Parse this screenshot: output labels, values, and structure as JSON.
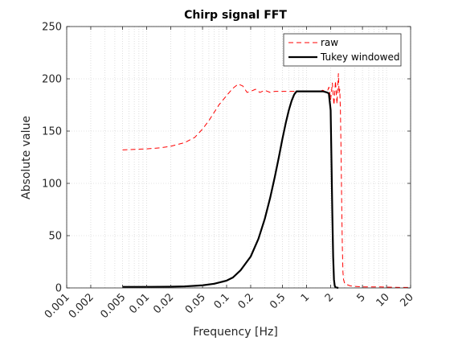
{
  "chart_data": {
    "type": "line",
    "title": "Chirp signal FFT",
    "xlabel": "Frequency [Hz]",
    "ylabel": "Absolute value",
    "xscale": "log",
    "xlim": [
      0.001,
      20
    ],
    "ylim": [
      0,
      250
    ],
    "xticks": [
      {
        "value": 0.001,
        "label": "0.001"
      },
      {
        "value": 0.002,
        "label": "0.002"
      },
      {
        "value": 0.005,
        "label": "0.005"
      },
      {
        "value": 0.01,
        "label": "0.01"
      },
      {
        "value": 0.02,
        "label": "0.02"
      },
      {
        "value": 0.05,
        "label": "0.05"
      },
      {
        "value": 0.1,
        "label": "0.1"
      },
      {
        "value": 0.2,
        "label": "0.2"
      },
      {
        "value": 0.5,
        "label": "0.5"
      },
      {
        "value": 1,
        "label": "1"
      },
      {
        "value": 2,
        "label": "2"
      },
      {
        "value": 5,
        "label": "5"
      },
      {
        "value": 10,
        "label": "10"
      },
      {
        "value": 20,
        "label": "20"
      }
    ],
    "yticks": [
      {
        "value": 0,
        "label": "0"
      },
      {
        "value": 50,
        "label": "50"
      },
      {
        "value": 100,
        "label": "100"
      },
      {
        "value": 150,
        "label": "150"
      },
      {
        "value": 200,
        "label": "200"
      },
      {
        "value": 250,
        "label": "250"
      }
    ],
    "grid": true,
    "legend_position": "top-right",
    "series": [
      {
        "name": "raw",
        "color": "#ff0000",
        "style": "dashed",
        "points": [
          [
            0.005,
            132
          ],
          [
            0.007,
            132.5
          ],
          [
            0.01,
            133
          ],
          [
            0.015,
            134
          ],
          [
            0.02,
            135.5
          ],
          [
            0.03,
            139
          ],
          [
            0.04,
            144
          ],
          [
            0.05,
            152
          ],
          [
            0.06,
            160
          ],
          [
            0.07,
            168
          ],
          [
            0.08,
            175
          ],
          [
            0.1,
            184
          ],
          [
            0.12,
            191
          ],
          [
            0.14,
            195
          ],
          [
            0.16,
            193
          ],
          [
            0.18,
            187
          ],
          [
            0.2,
            188
          ],
          [
            0.23,
            190
          ],
          [
            0.26,
            187
          ],
          [
            0.3,
            189
          ],
          [
            0.35,
            187
          ],
          [
            0.4,
            188
          ],
          [
            0.5,
            188
          ],
          [
            0.7,
            188
          ],
          [
            1,
            188
          ],
          [
            1.3,
            188
          ],
          [
            1.6,
            189
          ],
          [
            1.8,
            187
          ],
          [
            1.9,
            192
          ],
          [
            2.0,
            180
          ],
          [
            2.1,
            196
          ],
          [
            2.2,
            175
          ],
          [
            2.3,
            198
          ],
          [
            2.4,
            176
          ],
          [
            2.5,
            205
          ],
          [
            2.55,
            186
          ],
          [
            2.6,
            190
          ],
          [
            2.65,
            170
          ],
          [
            2.7,
            130
          ],
          [
            2.75,
            80
          ],
          [
            2.8,
            40
          ],
          [
            2.85,
            15
          ],
          [
            2.9,
            8
          ],
          [
            3.0,
            4
          ],
          [
            3.5,
            2
          ],
          [
            4,
            1.5
          ],
          [
            5,
            1
          ],
          [
            7,
            1
          ],
          [
            10,
            0.8
          ],
          [
            15,
            0.5
          ],
          [
            20,
            0.5
          ]
        ]
      },
      {
        "name": "Tukey windowed",
        "color": "#000000",
        "style": "solid",
        "points": [
          [
            0.005,
            1
          ],
          [
            0.01,
            1
          ],
          [
            0.02,
            1.2
          ],
          [
            0.03,
            1.5
          ],
          [
            0.04,
            2
          ],
          [
            0.05,
            2.5
          ],
          [
            0.07,
            4
          ],
          [
            0.1,
            7
          ],
          [
            0.12,
            10
          ],
          [
            0.15,
            17
          ],
          [
            0.2,
            30
          ],
          [
            0.25,
            47
          ],
          [
            0.3,
            66
          ],
          [
            0.35,
            86
          ],
          [
            0.4,
            106
          ],
          [
            0.45,
            125
          ],
          [
            0.5,
            143
          ],
          [
            0.55,
            158
          ],
          [
            0.6,
            170
          ],
          [
            0.65,
            179
          ],
          [
            0.7,
            185
          ],
          [
            0.75,
            188
          ],
          [
            0.8,
            188
          ],
          [
            1,
            188
          ],
          [
            1.3,
            188
          ],
          [
            1.6,
            188
          ],
          [
            1.8,
            187
          ],
          [
            1.9,
            186
          ],
          [
            2.0,
            170
          ],
          [
            2.05,
            120
          ],
          [
            2.1,
            70
          ],
          [
            2.15,
            30
          ],
          [
            2.2,
            8
          ],
          [
            2.25,
            2
          ],
          [
            2.3,
            0.5
          ],
          [
            2.5,
            0
          ]
        ]
      }
    ]
  }
}
